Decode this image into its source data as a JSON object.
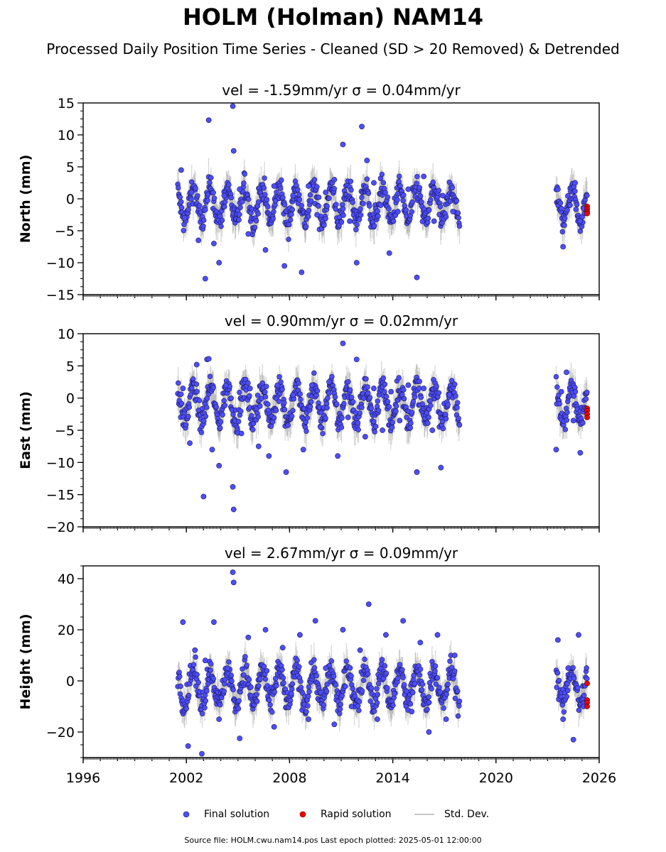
{
  "title": "HOLM (Holman) NAM14",
  "subtitle": "Processed Daily Position Time Series - Cleaned (SD > 20 Removed) & Detrended",
  "legend": {
    "final": "Final solution",
    "rapid": "Rapid solution",
    "std": "Std. Dev."
  },
  "source_note": "Source file: HOLM.cwu.nam14.pos  Last epoch plotted: 2025-05-01 12:00:00",
  "colors": {
    "final": "#4d4dff",
    "rapid": "#ee0000",
    "std": "#808080"
  },
  "chart_data": [
    {
      "type": "scatter",
      "panel": "north",
      "title": "vel = -1.59mm/yr   σ = 0.04mm/yr",
      "ylabel": "North (mm)",
      "xlim": [
        1996,
        2026
      ],
      "ylim": [
        -15,
        15
      ],
      "yticks": [
        -15,
        -10,
        -5,
        0,
        5,
        10,
        15
      ],
      "ytick_labels": [
        "−15",
        "−10",
        "−5",
        "0",
        "5",
        "10",
        "15"
      ],
      "segments": [
        [
          2001.5,
          2017.9
        ],
        [
          2023.5,
          2025.3
        ]
      ],
      "series": [
        {
          "name": "Final solution",
          "x": [
            2001.7,
            2001.9,
            2002.3,
            2002.7,
            2003.1,
            2003.3,
            2003.6,
            2003.9,
            2004.2,
            2004.7,
            2004.75,
            2005.1,
            2005.6,
            2006.2,
            2006.6,
            2007.1,
            2007.7,
            2008.2,
            2008.7,
            2009.1,
            2009.6,
            2010.1,
            2010.6,
            2011.1,
            2011.5,
            2011.9,
            2012.2,
            2012.5,
            2012.9,
            2013.3,
            2013.8,
            2014.3,
            2014.9,
            2015.4,
            2015.8,
            2016.4,
            2016.9,
            2017.5,
            2023.6,
            2023.9,
            2024.3,
            2024.6,
            2024.9,
            2025.1
          ],
          "y": [
            4.5,
            -3.0,
            1.0,
            -6.5,
            -12.5,
            12.3,
            -7.0,
            -10.0,
            0.5,
            14.5,
            7.5,
            1.5,
            -5.5,
            -0.5,
            -8.0,
            2.0,
            -10.5,
            0.5,
            -11.5,
            2.0,
            -2.5,
            1.0,
            3.0,
            8.5,
            -3.5,
            -10.0,
            11.3,
            6.0,
            2.5,
            -1.0,
            -8.5,
            -2.0,
            1.5,
            -12.3,
            3.5,
            -3.5,
            0.5,
            -2.0,
            1.5,
            -7.5,
            -1.0,
            2.5,
            -3.5,
            -1.5
          ]
        },
        {
          "name": "Rapid solution",
          "x": [
            2025.3,
            2025.3,
            2025.3,
            2025.3
          ],
          "y": [
            -1.2,
            -1.6,
            -2.0,
            -2.3
          ]
        }
      ]
    },
    {
      "type": "scatter",
      "panel": "east",
      "title": "vel = 0.90mm/yr   σ = 0.02mm/yr",
      "ylabel": "East (mm)",
      "xlim": [
        1996,
        2026
      ],
      "ylim": [
        -20,
        10
      ],
      "yticks": [
        -20,
        -15,
        -10,
        -5,
        0,
        5,
        10
      ],
      "ytick_labels": [
        "−20",
        "−15",
        "−10",
        "−5",
        "0",
        "5",
        "10"
      ],
      "segments": [
        [
          2001.5,
          2017.9
        ],
        [
          2023.5,
          2025.3
        ]
      ],
      "series": [
        {
          "name": "Final solution",
          "x": [
            2001.8,
            2002.2,
            2002.6,
            2003.0,
            2003.2,
            2003.3,
            2003.5,
            2003.9,
            2004.3,
            2004.7,
            2004.75,
            2005.2,
            2005.7,
            2006.2,
            2006.8,
            2007.3,
            2007.8,
            2008.2,
            2008.8,
            2009.3,
            2009.8,
            2010.3,
            2010.8,
            2011.1,
            2011.4,
            2011.9,
            2012.4,
            2012.9,
            2013.4,
            2013.9,
            2014.4,
            2014.9,
            2015.4,
            2015.8,
            2016.3,
            2016.8,
            2017.3,
            2023.5,
            2023.8,
            2024.1,
            2024.5,
            2024.9
          ],
          "y": [
            1.5,
            -7.0,
            5.2,
            -15.3,
            6.0,
            6.1,
            -8.0,
            -10.5,
            2.0,
            -13.8,
            -17.3,
            -5.5,
            1.5,
            -7.5,
            -9.0,
            2.0,
            -11.5,
            0.5,
            -8.0,
            2.0,
            -4.5,
            2.5,
            -9.0,
            8.5,
            -3.0,
            6.0,
            -6.0,
            1.5,
            -5.0,
            1.0,
            -3.5,
            2.0,
            -11.5,
            1.5,
            -5.0,
            -10.8,
            0.5,
            -8.0,
            1.0,
            4.0,
            -3.5,
            -8.5
          ]
        },
        {
          "name": "Rapid solution",
          "x": [
            2025.3,
            2025.3,
            2025.3,
            2025.3
          ],
          "y": [
            -1.6,
            -2.0,
            -2.5,
            -3.0
          ]
        }
      ]
    },
    {
      "type": "scatter",
      "panel": "height",
      "title": "vel = 2.67mm/yr   σ = 0.09mm/yr",
      "ylabel": "Height (mm)",
      "xlim": [
        1996,
        2026
      ],
      "ylim": [
        -30,
        45
      ],
      "yticks": [
        -20,
        0,
        20,
        40
      ],
      "ytick_labels": [
        "−20",
        "0",
        "20",
        "40"
      ],
      "segments": [
        [
          2001.5,
          2017.9
        ],
        [
          2023.5,
          2025.3
        ]
      ],
      "series": [
        {
          "name": "Final solution",
          "x": [
            2001.8,
            2002.1,
            2002.5,
            2002.9,
            2003.1,
            2003.6,
            2003.9,
            2004.4,
            2004.7,
            2004.75,
            2005.1,
            2005.6,
            2006.1,
            2006.6,
            2007.1,
            2007.6,
            2008.1,
            2008.6,
            2009.1,
            2009.5,
            2010.1,
            2010.6,
            2011.1,
            2011.6,
            2012.1,
            2012.6,
            2013.1,
            2013.6,
            2014.1,
            2014.6,
            2015.1,
            2015.6,
            2016.1,
            2016.6,
            2017.1,
            2017.6,
            2023.6,
            2023.9,
            2024.2,
            2024.5,
            2024.8,
            2025.1
          ],
          "y": [
            23.0,
            -25.5,
            12.0,
            -28.5,
            8.0,
            23.0,
            -15.0,
            5.0,
            42.5,
            38.5,
            -22.5,
            17.0,
            -8.0,
            20.0,
            -18.0,
            13.0,
            -5.0,
            18.0,
            -15.0,
            23.5,
            5.0,
            -17.0,
            20.0,
            -10.0,
            12.0,
            30.0,
            -15.0,
            18.0,
            -5.0,
            23.5,
            -12.0,
            15.0,
            -20.0,
            18.0,
            -15.0,
            10.0,
            16.0,
            -15.0,
            5.0,
            -23.0,
            18.0,
            -10.0
          ]
        },
        {
          "name": "Rapid solution",
          "x": [
            2025.3,
            2025.3,
            2025.3,
            2025.3
          ],
          "y": [
            -1.0,
            -7.5,
            -8.5,
            -10.0
          ]
        }
      ]
    }
  ],
  "x_ticks": [
    1996,
    2002,
    2008,
    2014,
    2020,
    2026
  ],
  "x_tick_labels": [
    "1996",
    "2002",
    "2008",
    "2014",
    "2020",
    "2026"
  ]
}
